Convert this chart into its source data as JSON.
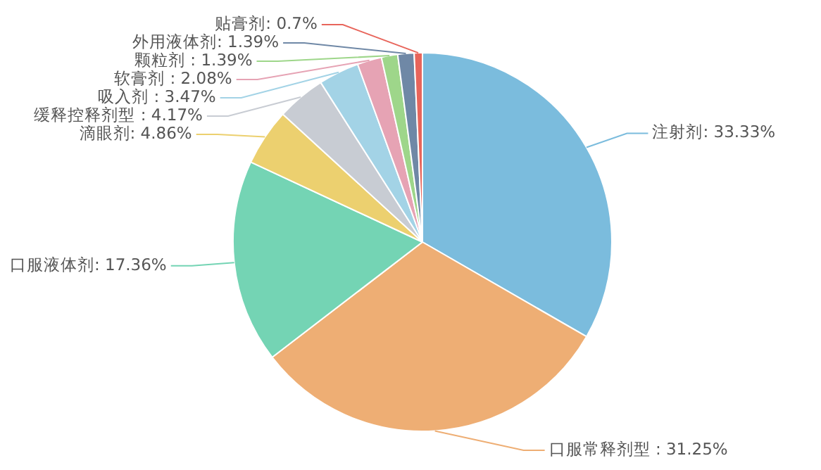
{
  "chart_data": {
    "type": "pie",
    "categories": [
      "注射剂",
      "口服常释剂型 ",
      "口服液体剂",
      "滴眼剂",
      "缓释控释剂型 ",
      "吸入剂 ",
      "软膏剂 ",
      "颗粒剂 ",
      "外用液体剂",
      "贴膏剂"
    ],
    "values": [
      33.33,
      31.25,
      17.36,
      4.86,
      4.17,
      3.47,
      2.08,
      1.39,
      1.39,
      0.7
    ],
    "value_labels": [
      "33.33%",
      "31.25%",
      "17.36%",
      "4.86%",
      "4.17%",
      "3.47%",
      "2.08%",
      "1.39%",
      "1.39%",
      "0.7%"
    ],
    "colors": [
      "#7bbcdd",
      "#eeae74",
      "#74d4b4",
      "#ecd06f",
      "#c8ccd3",
      "#a3d3e6",
      "#e6a3b4",
      "#9ed68a",
      "#6f88a6",
      "#e8655b"
    ],
    "legend": false
  }
}
